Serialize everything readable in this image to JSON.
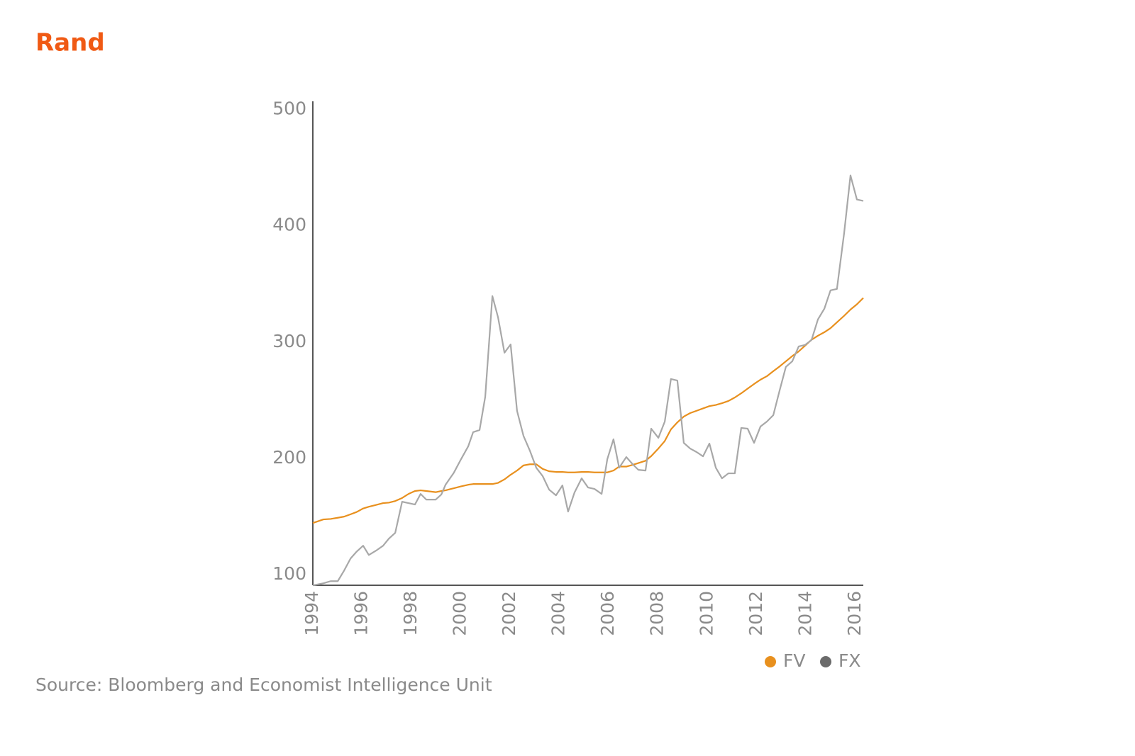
{
  "chart_data": {
    "type": "line",
    "title": "Rand",
    "source": "Source: Bloomberg and Economist Intelligence Unit",
    "x": [
      1994,
      1994.43,
      1994.72,
      1995.01,
      1995.27,
      1995.53,
      1995.78,
      1996.04,
      1996.27,
      1996.56,
      1996.85,
      1997.08,
      1997.34,
      1997.62,
      1997.88,
      1998.14,
      1998.37,
      1998.6,
      1998.98,
      1999.21,
      1999.38,
      1999.72,
      2000.01,
      2000.3,
      2000.5,
      2000.76,
      2000.99,
      2001.28,
      2001.51,
      2001.77,
      2002.02,
      2002.28,
      2002.54,
      2002.8,
      2003.06,
      2003.32,
      2003.58,
      2003.86,
      2004.12,
      2004.35,
      2004.61,
      2004.9,
      2005.16,
      2005.42,
      2005.71,
      2005.94,
      2006.19,
      2006.42,
      2006.71,
      2006.97,
      2007.2,
      2007.49,
      2007.72,
      2008.01,
      2008.27,
      2008.52,
      2008.78,
      2009.04,
      2009.3,
      2009.56,
      2009.82,
      2010.08,
      2010.34,
      2010.59,
      2010.85,
      2011.11,
      2011.37,
      2011.63,
      2011.89,
      2012.15,
      2012.41,
      2012.67,
      2012.92,
      2013.18,
      2013.44,
      2013.7,
      2013.96,
      2014.22,
      2014.48,
      2014.74,
      2014.99,
      2015.25,
      2015.54,
      2015.8,
      2016.06,
      2016.32
    ],
    "series": [
      {
        "name": "FV",
        "color": "#e8901e",
        "values": [
          144.5,
          147.6,
          148,
          149,
          150,
          152,
          154,
          157,
          158.5,
          160,
          161.6,
          162,
          163.4,
          166,
          169.5,
          172,
          172.6,
          172,
          171,
          172,
          172.6,
          174.4,
          176,
          177.4,
          178,
          178,
          178,
          178,
          179,
          182,
          186,
          189.6,
          194,
          195,
          195,
          191,
          189,
          188.4,
          188.4,
          188,
          188,
          188.4,
          188.4,
          188,
          188,
          188,
          189.6,
          193,
          193,
          194.5,
          196,
          198,
          202,
          208.5,
          215,
          225,
          231,
          236,
          239,
          241,
          243,
          245,
          246,
          247.5,
          249.4,
          252.4,
          256,
          260,
          264,
          267.7,
          270.7,
          275,
          279,
          283.5,
          288,
          292,
          297,
          302,
          305.5,
          308.5,
          312,
          317,
          322.6,
          328,
          332.5,
          338
        ]
      },
      {
        "name": "FX",
        "color": "#a8a8a8",
        "values": [
          90.9,
          92.7,
          94.5,
          94.5,
          103.7,
          114,
          120,
          125,
          117,
          120.7,
          125,
          131,
          136,
          162.8,
          161.6,
          160.4,
          169.5,
          164.6,
          164.6,
          169,
          177.4,
          187.8,
          199.4,
          210.4,
          222.6,
          224.4,
          253,
          339.6,
          321.3,
          290.9,
          298,
          240.9,
          219.5,
          206.7,
          192,
          184.8,
          173.2,
          168.3,
          176.8,
          154.3,
          170.7,
          182.9,
          175,
          173.8,
          169.5,
          199.4,
          216.5,
          192,
          201.2,
          195,
          190.2,
          189.6,
          225.6,
          217.7,
          231.7,
          268.3,
          267,
          213.4,
          208.5,
          205.5,
          201.8,
          212.8,
          192,
          182.9,
          187.2,
          187.2,
          226.2,
          225.6,
          213.4,
          227.4,
          231.7,
          237.2,
          257.9,
          278.7,
          283.5,
          296.3,
          297.6,
          301.8,
          319.5,
          328.7,
          344.5,
          345.7,
          393.3,
          443.3,
          422.6,
          421.4
        ]
      }
    ],
    "xlim": [
      1994,
      2016.32
    ],
    "xticks": [
      1994,
      1996,
      1998,
      2000,
      2002,
      2004,
      2006,
      2008,
      2010,
      2012,
      2014,
      2016
    ],
    "ylim": [
      91,
      507
    ],
    "yticks": [
      100,
      200,
      300,
      400,
      500
    ],
    "grid": false,
    "legend": "bottom-right"
  }
}
